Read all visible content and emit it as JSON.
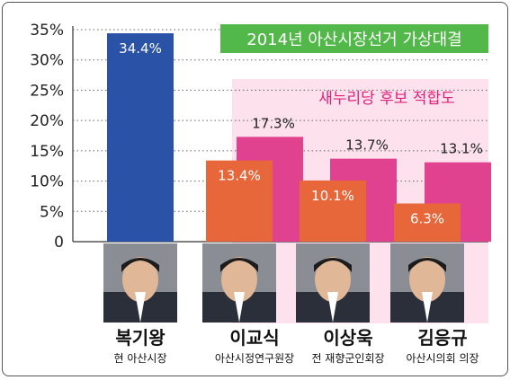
{
  "chart_data": {
    "type": "bar",
    "title": "2014년 아산시장선거 가상대결",
    "subtitle": "새누리당 후보 적합도",
    "y_ticks": [
      "35%",
      "30%",
      "25%",
      "20%",
      "15%",
      "10%",
      "5%",
      "0"
    ],
    "ylim": [
      0,
      35
    ],
    "grid": true,
    "categories": [
      {
        "name": "복기왕",
        "role": "현 아산시장"
      },
      {
        "name": "이교식",
        "role": "아산시정연구원장"
      },
      {
        "name": "이상욱",
        "role": "전 재향군인회장"
      },
      {
        "name": "김응규",
        "role": "아산시의회 의장"
      }
    ],
    "series": [
      {
        "values": [
          34.4,
          13.4,
          10.1,
          6.3
        ],
        "labels": [
          "34.4%",
          "13.4%",
          "10.1%",
          "6.3%"
        ]
      },
      {
        "values": [
          null,
          17.3,
          13.7,
          13.1
        ],
        "labels": [
          "",
          "17.3%",
          "13.7%",
          "13.1%"
        ]
      }
    ],
    "colors": {
      "incumbent": "#2a52a6",
      "matchup": "#e8673a",
      "fitness": "#e0428f",
      "panel": "#fde1ec",
      "title_box": "#52b84a",
      "subtitle": "#e0217a"
    }
  }
}
